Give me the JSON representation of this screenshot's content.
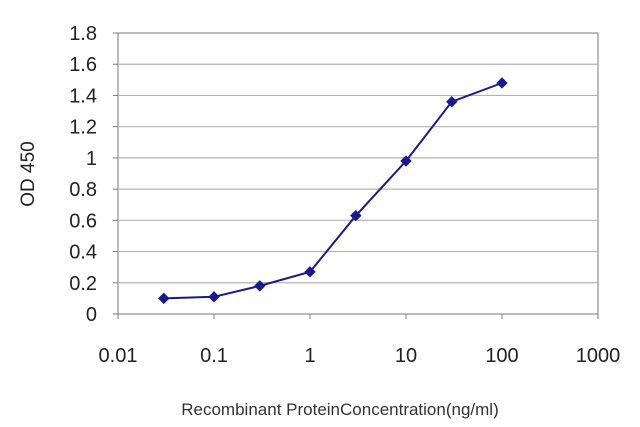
{
  "chart_data": {
    "type": "line",
    "xscale": "log",
    "x": [
      0.03,
      0.1,
      0.3,
      1,
      3,
      10,
      30,
      100
    ],
    "series": [
      {
        "values": [
          0.1,
          0.11,
          0.18,
          0.27,
          0.63,
          0.98,
          1.36,
          1.48
        ]
      }
    ],
    "xlabel": "Recombinant ProteinConcentration(ng/ml)",
    "ylabel": "OD 450",
    "xlim": [
      0.01,
      1000
    ],
    "ylim": [
      0,
      1.8
    ],
    "xticks": [
      "0.01",
      "0.1",
      "1",
      "10",
      "100",
      "1000"
    ],
    "yticks": [
      "0",
      "0.2",
      "0.4",
      "0.6",
      "0.8",
      "1",
      "1.2",
      "1.4",
      "1.6",
      "1.8"
    ],
    "grid": "horizontal",
    "legend": "none",
    "colors": {
      "series": "#1a1a8c",
      "grid": "#b3b3b3",
      "frame": "#7a7a7a"
    }
  }
}
